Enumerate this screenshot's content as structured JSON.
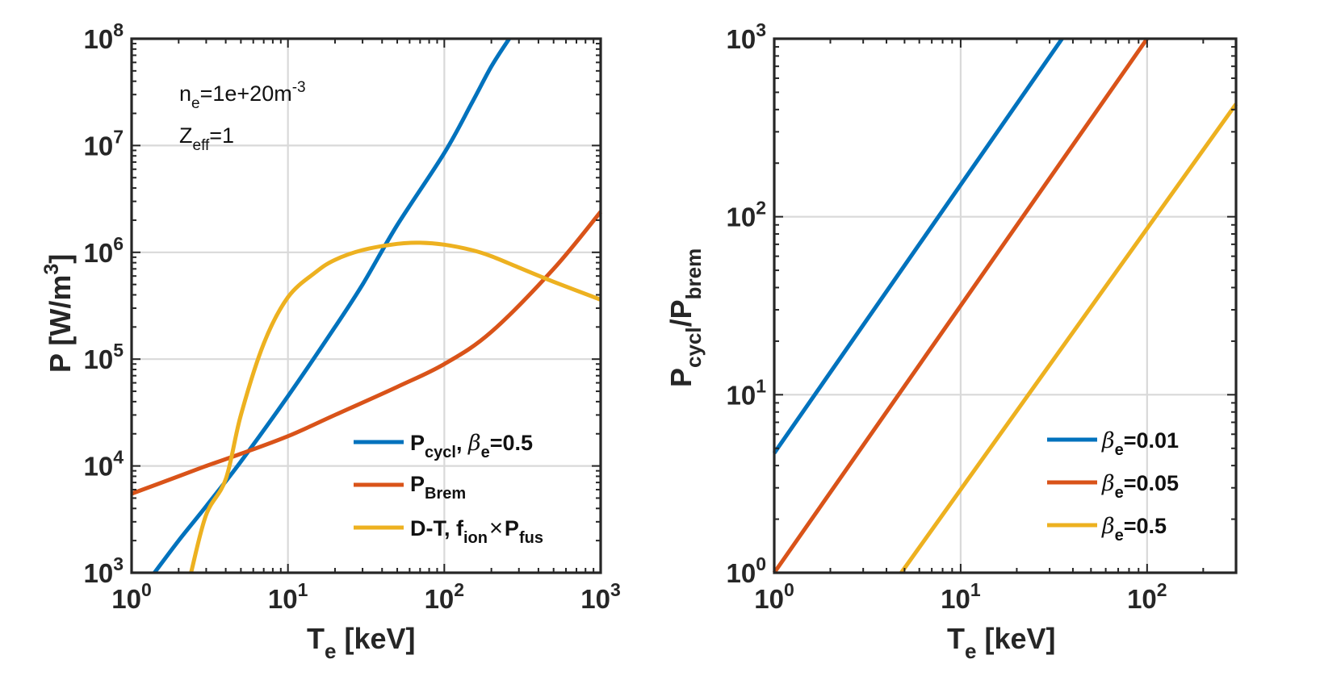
{
  "chart_data": [
    {
      "type": "line",
      "x_scale": "log",
      "y_scale": "log",
      "xlim": [
        1,
        1000
      ],
      "ylim": [
        1000,
        100000000
      ],
      "xlabel": {
        "base": "T",
        "sub": "e",
        "rest": " [keV]"
      },
      "ylabel": {
        "base": "P [W/m",
        "sup": "3",
        "rest": "]"
      },
      "x_ticks": [
        {
          "value": 1,
          "base": "10",
          "exp": "0"
        },
        {
          "value": 10,
          "base": "10",
          "exp": "1"
        },
        {
          "value": 100,
          "base": "10",
          "exp": "2"
        },
        {
          "value": 1000,
          "base": "10",
          "exp": "3"
        }
      ],
      "y_ticks": [
        {
          "value": 1000,
          "base": "10",
          "exp": "3"
        },
        {
          "value": 10000,
          "base": "10",
          "exp": "4"
        },
        {
          "value": 100000,
          "base": "10",
          "exp": "5"
        },
        {
          "value": 1000000,
          "base": "10",
          "exp": "6"
        },
        {
          "value": 10000000,
          "base": "10",
          "exp": "7"
        },
        {
          "value": 100000000,
          "base": "10",
          "exp": "8"
        }
      ],
      "grid": true,
      "annotation": [
        {
          "base": "n",
          "sub": "e",
          "mid": "=1e+20m",
          "sup": "-3"
        },
        {
          "base": "Z",
          "sub": "eff",
          "mid": "=1",
          "sup": ""
        }
      ],
      "legend_position": "bottom-right",
      "series": [
        {
          "name": "P_cycl, β_e=0.5",
          "legend": {
            "base": "P",
            "sub": "cycl",
            "post": ", ",
            "greek": "β",
            "sub2": "e",
            "tail": "=0.5"
          },
          "color": "#0072BD",
          "points": [
            [
              1.4,
              1000
            ],
            [
              2,
              2000
            ],
            [
              3,
              4200
            ],
            [
              5,
              11000
            ],
            [
              10,
              45000
            ],
            [
              20,
              200000
            ],
            [
              30,
              500000
            ],
            [
              50,
              1800000
            ],
            [
              100,
              8500000
            ],
            [
              150,
              25000000
            ],
            [
              200,
              55000000
            ],
            [
              260,
              100000000
            ]
          ]
        },
        {
          "name": "P_Brem",
          "legend": {
            "base": "P",
            "sub": "Brem",
            "post": "",
            "greek": "",
            "sub2": "",
            "tail": ""
          },
          "color": "#D95319",
          "points": [
            [
              1,
              5500
            ],
            [
              2,
              8000
            ],
            [
              3,
              10000
            ],
            [
              5,
              13000
            ],
            [
              10,
              19000
            ],
            [
              20,
              30000
            ],
            [
              50,
              55000
            ],
            [
              100,
              90000
            ],
            [
              200,
              180000
            ],
            [
              500,
              700000
            ],
            [
              1000,
              2400000
            ]
          ]
        },
        {
          "name": "D-T, f_ion×P_fus",
          "legend": {
            "base": "D-T, f",
            "sub": "ion",
            "post": "",
            "greek": "",
            "sub2": "",
            "tail": "",
            "op": "×",
            "base2": "P",
            "sub3": "fus"
          },
          "color": "#EDB120",
          "points": [
            [
              2.4,
              1000
            ],
            [
              3,
              3500
            ],
            [
              4,
              7500
            ],
            [
              5,
              30000
            ],
            [
              7,
              140000
            ],
            [
              10,
              380000
            ],
            [
              15,
              650000
            ],
            [
              20,
              850000
            ],
            [
              30,
              1050000
            ],
            [
              50,
              1200000
            ],
            [
              70,
              1230000
            ],
            [
              100,
              1180000
            ],
            [
              150,
              1050000
            ],
            [
              200,
              920000
            ],
            [
              300,
              720000
            ],
            [
              500,
              530000
            ],
            [
              1000,
              360000
            ]
          ]
        }
      ]
    },
    {
      "type": "line",
      "x_scale": "log",
      "y_scale": "log",
      "xlim": [
        1,
        300
      ],
      "ylim": [
        1,
        1000
      ],
      "xlabel": {
        "base": "T",
        "sub": "e",
        "rest": " [keV]"
      },
      "ylabel": {
        "base": "P",
        "sub": "cycl",
        "mid": "/P",
        "sub2": "brem"
      },
      "x_ticks": [
        {
          "value": 1,
          "base": "10",
          "exp": "0"
        },
        {
          "value": 10,
          "base": "10",
          "exp": "1"
        },
        {
          "value": 100,
          "base": "10",
          "exp": "2"
        }
      ],
      "y_ticks": [
        {
          "value": 1,
          "base": "10",
          "exp": "0"
        },
        {
          "value": 10,
          "base": "10",
          "exp": "1"
        },
        {
          "value": 100,
          "base": "10",
          "exp": "2"
        },
        {
          "value": 1000,
          "base": "10",
          "exp": "3"
        }
      ],
      "grid": true,
      "legend_position": "bottom-right",
      "series": [
        {
          "name": "β_e=0.01",
          "legend": {
            "greek": "β",
            "sub": "e",
            "tail": "=0.01"
          },
          "color": "#0072BD",
          "points": [
            [
              1,
              4.7
            ],
            [
              35,
              1000
            ]
          ]
        },
        {
          "name": "β_e=0.05",
          "legend": {
            "greek": "β",
            "sub": "e",
            "tail": "=0.05"
          },
          "color": "#D95319",
          "points": [
            [
              1,
              1
            ],
            [
              100,
              1000
            ]
          ]
        },
        {
          "name": "β_e=0.5",
          "legend": {
            "greek": "β",
            "sub": "e",
            "tail": "=0.5"
          },
          "color": "#EDB120",
          "points": [
            [
              4.8,
              1
            ],
            [
              300,
              430
            ]
          ]
        }
      ]
    }
  ]
}
